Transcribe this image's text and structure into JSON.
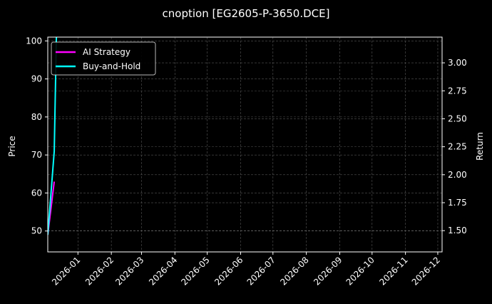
{
  "chart_data": {
    "type": "line",
    "title": "cnoption [EG2605-P-3650.DCE]",
    "xlabel": "",
    "ylabel": "Price",
    "y2label": "Return",
    "xlim": [
      "2025-12-04",
      "2026-12-05"
    ],
    "ylim": [
      44.5,
      101
    ],
    "y2lim": [
      1.31,
      3.23
    ],
    "x_ticks": [
      "2026-01",
      "2026-02",
      "2026-03",
      "2026-04",
      "2026-05",
      "2026-06",
      "2026-07",
      "2026-08",
      "2026-09",
      "2026-10",
      "2026-11",
      "2026-12"
    ],
    "y_ticks": [
      50,
      60,
      70,
      80,
      90,
      100
    ],
    "y2_ticks": [
      "1.50",
      "1.75",
      "2.00",
      "2.25",
      "2.50",
      "2.75",
      "3.00"
    ],
    "grid": true,
    "legend_position": "top-left",
    "series": [
      {
        "name": "AI Strategy",
        "color": "#ff00ff",
        "x": [
          "2025-12-04",
          "2025-12-10"
        ],
        "y": [
          49,
          63
        ]
      },
      {
        "name": "Buy-and-Hold",
        "color": "#00ffff",
        "x": [
          "2025-12-04",
          "2025-12-10",
          "2025-12-12"
        ],
        "y": [
          49,
          71,
          101
        ]
      }
    ]
  }
}
